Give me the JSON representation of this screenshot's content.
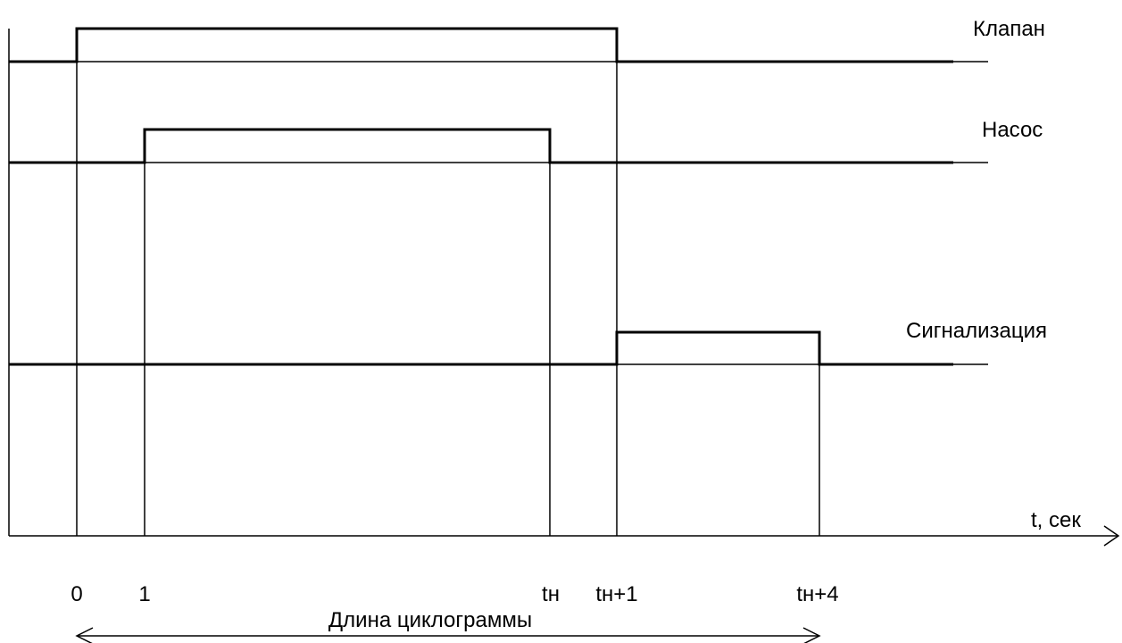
{
  "axis": {
    "t_label": "t, сек"
  },
  "tick_labels": [
    "0",
    "1",
    "tн",
    "tн+1",
    "tн+4"
  ],
  "signals": [
    {
      "name": "Клапан",
      "on": "0",
      "off": "tн+1"
    },
    {
      "name": "Насос",
      "on": "1",
      "off": "tн"
    },
    {
      "name": "Сигнализация",
      "on": "tн+1",
      "off": "tн+4"
    }
  ],
  "span": {
    "label": "Длина циклограммы",
    "from": "0",
    "to": "tн+4"
  }
}
